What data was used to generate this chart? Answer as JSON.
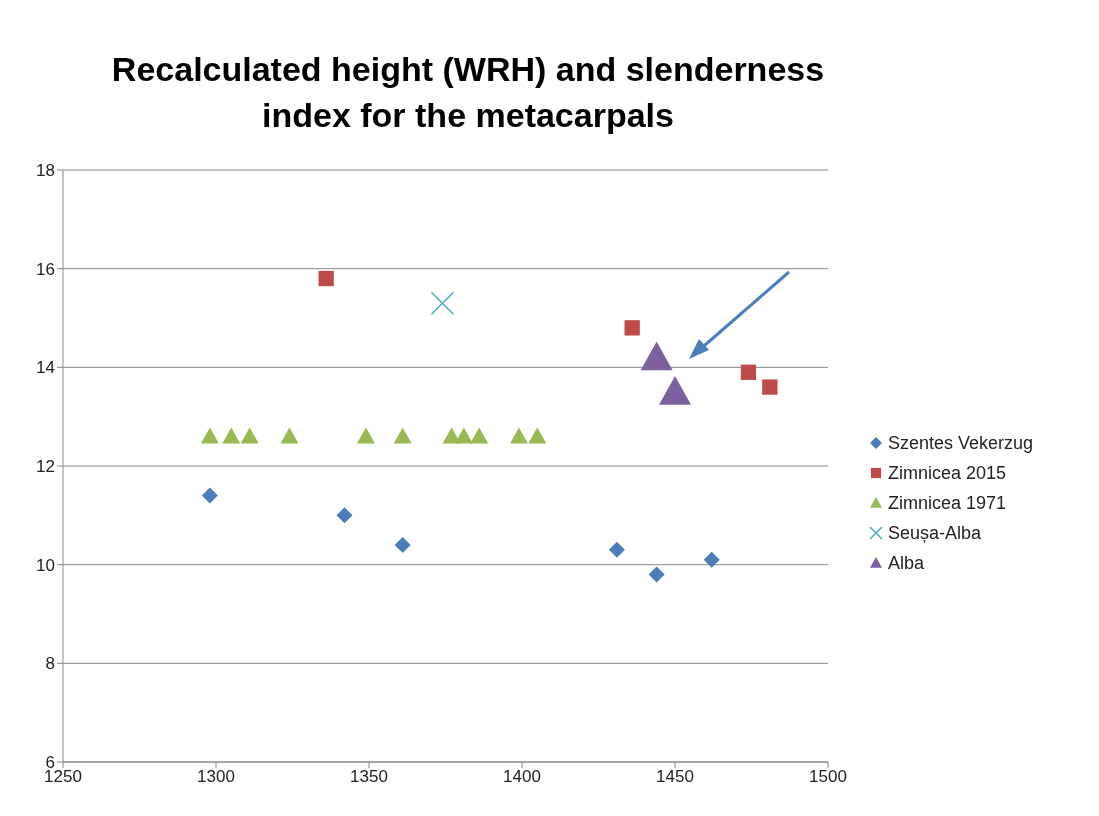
{
  "chart_data": {
    "type": "scatter",
    "title": "Recalculated height (WRH) and slenderness\nindex for the metacarpals",
    "xlim": [
      1250,
      1500
    ],
    "xticks": [
      1250,
      1300,
      1350,
      1400,
      1450,
      1500
    ],
    "ylim": [
      6,
      18
    ],
    "yticks": [
      6,
      8,
      10,
      12,
      14,
      16,
      18
    ],
    "grid": "y",
    "legend": "right",
    "series": [
      {
        "name": "Szentes Vekerzug",
        "color": "#4a7ebb",
        "marker": "diamond",
        "x": [
          1298,
          1342,
          1361,
          1431,
          1444,
          1462
        ],
        "values": [
          11.4,
          11.0,
          10.4,
          10.3,
          9.8,
          10.1
        ]
      },
      {
        "name": "Zimnicea 2015",
        "color": "#be4b48",
        "marker": "square",
        "x": [
          1336,
          1436,
          1474,
          1481
        ],
        "values": [
          15.8,
          14.8,
          13.9,
          13.6
        ]
      },
      {
        "name": "Zimnicea 1971",
        "color": "#98b954",
        "marker": "triangle",
        "x": [
          1298,
          1305,
          1311,
          1324,
          1349,
          1361,
          1377,
          1381,
          1386,
          1399,
          1405
        ],
        "values": [
          12.6,
          12.6,
          12.6,
          12.6,
          12.6,
          12.6,
          12.6,
          12.6,
          12.6,
          12.6,
          12.6
        ]
      },
      {
        "name": "Seușa-Alba",
        "color": "#4bacc6",
        "marker": "cross",
        "x": [
          1374
        ],
        "values": [
          15.3
        ]
      },
      {
        "name": "Alba",
        "color": "#7d60a0",
        "marker": "triangle",
        "x": [
          1444,
          1450
        ],
        "values": [
          14.2,
          13.5
        ]
      }
    ]
  }
}
